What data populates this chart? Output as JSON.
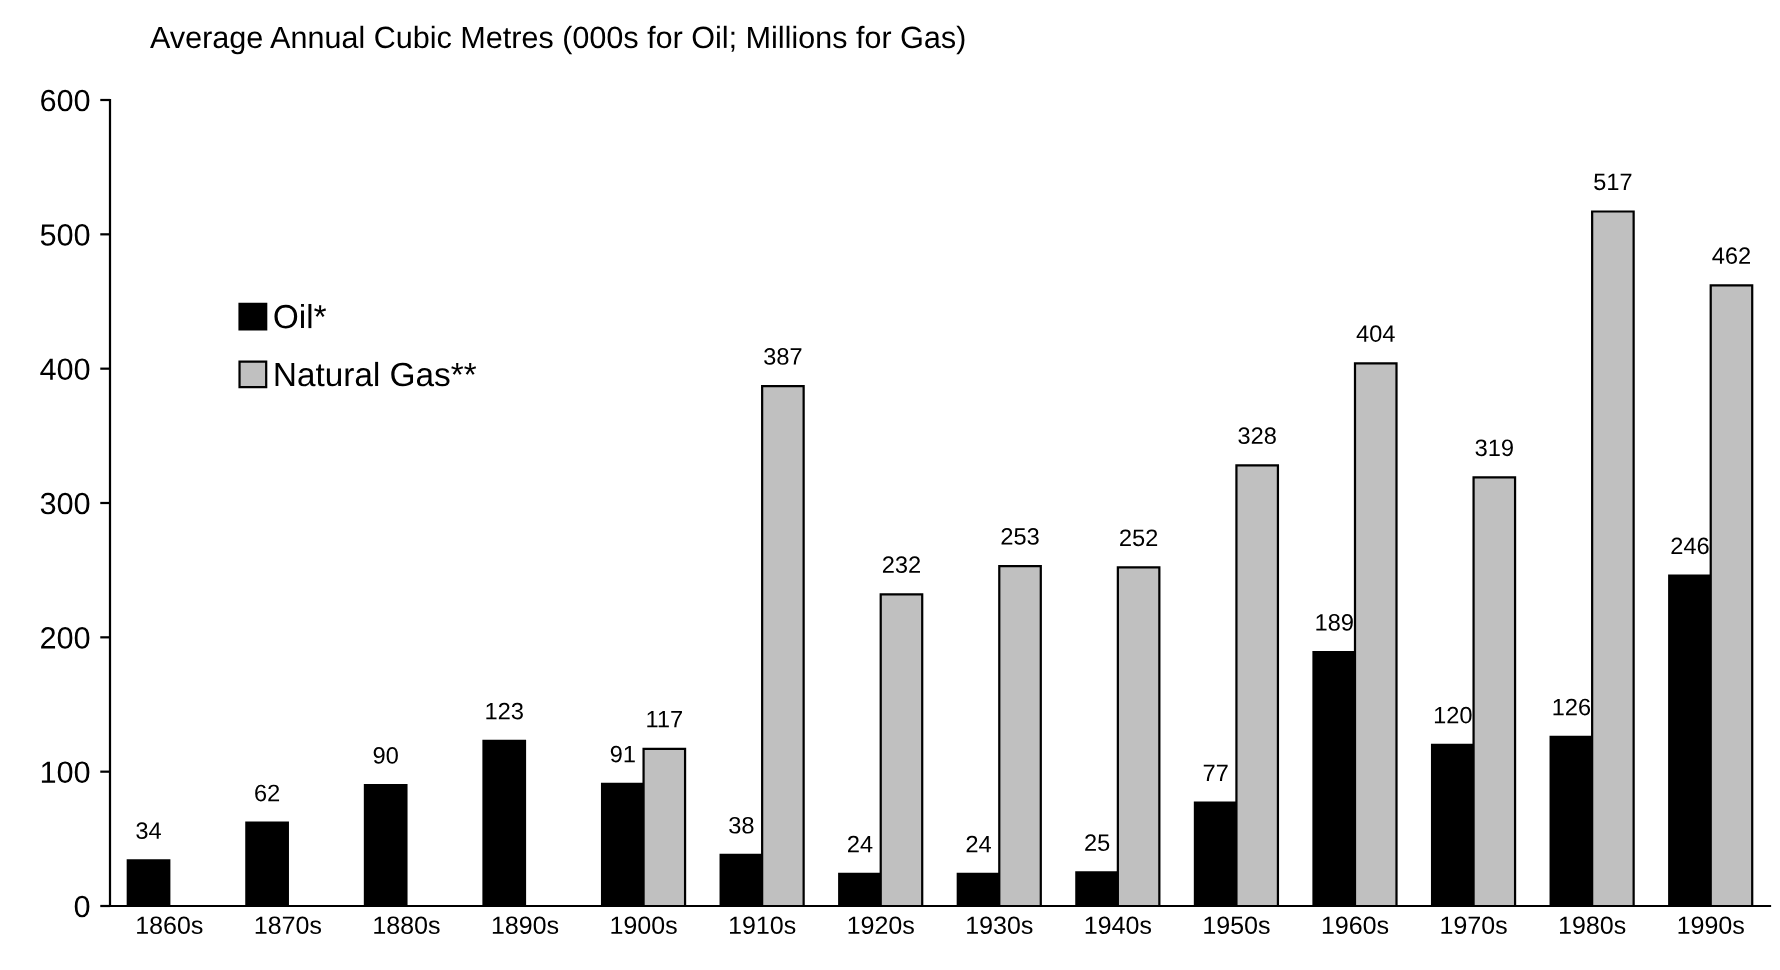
{
  "chart_data": {
    "type": "bar",
    "title": "Average Annual Cubic Metres (000s for Oil; Millions for Gas)",
    "categories": [
      "1860s",
      "1870s",
      "1880s",
      "1890s",
      "1900s",
      "1910s",
      "1920s",
      "1930s",
      "1940s",
      "1950s",
      "1960s",
      "1970s",
      "1980s",
      "1990s"
    ],
    "series": [
      {
        "name": "Oil*",
        "color": "#000000",
        "values": [
          34,
          62,
          90,
          123,
          91,
          38,
          24,
          24,
          25,
          77,
          189,
          120,
          126,
          246
        ]
      },
      {
        "name": "Natural Gas**",
        "color": "#c0c0c0",
        "values": [
          null,
          null,
          null,
          null,
          117,
          387,
          232,
          253,
          252,
          328,
          404,
          319,
          517,
          462
        ]
      }
    ],
    "ylim": [
      0,
      600
    ],
    "yticks": [
      0,
      100,
      200,
      300,
      400,
      500,
      600
    ],
    "data_labels": true,
    "legend": "top left",
    "grid": false
  }
}
